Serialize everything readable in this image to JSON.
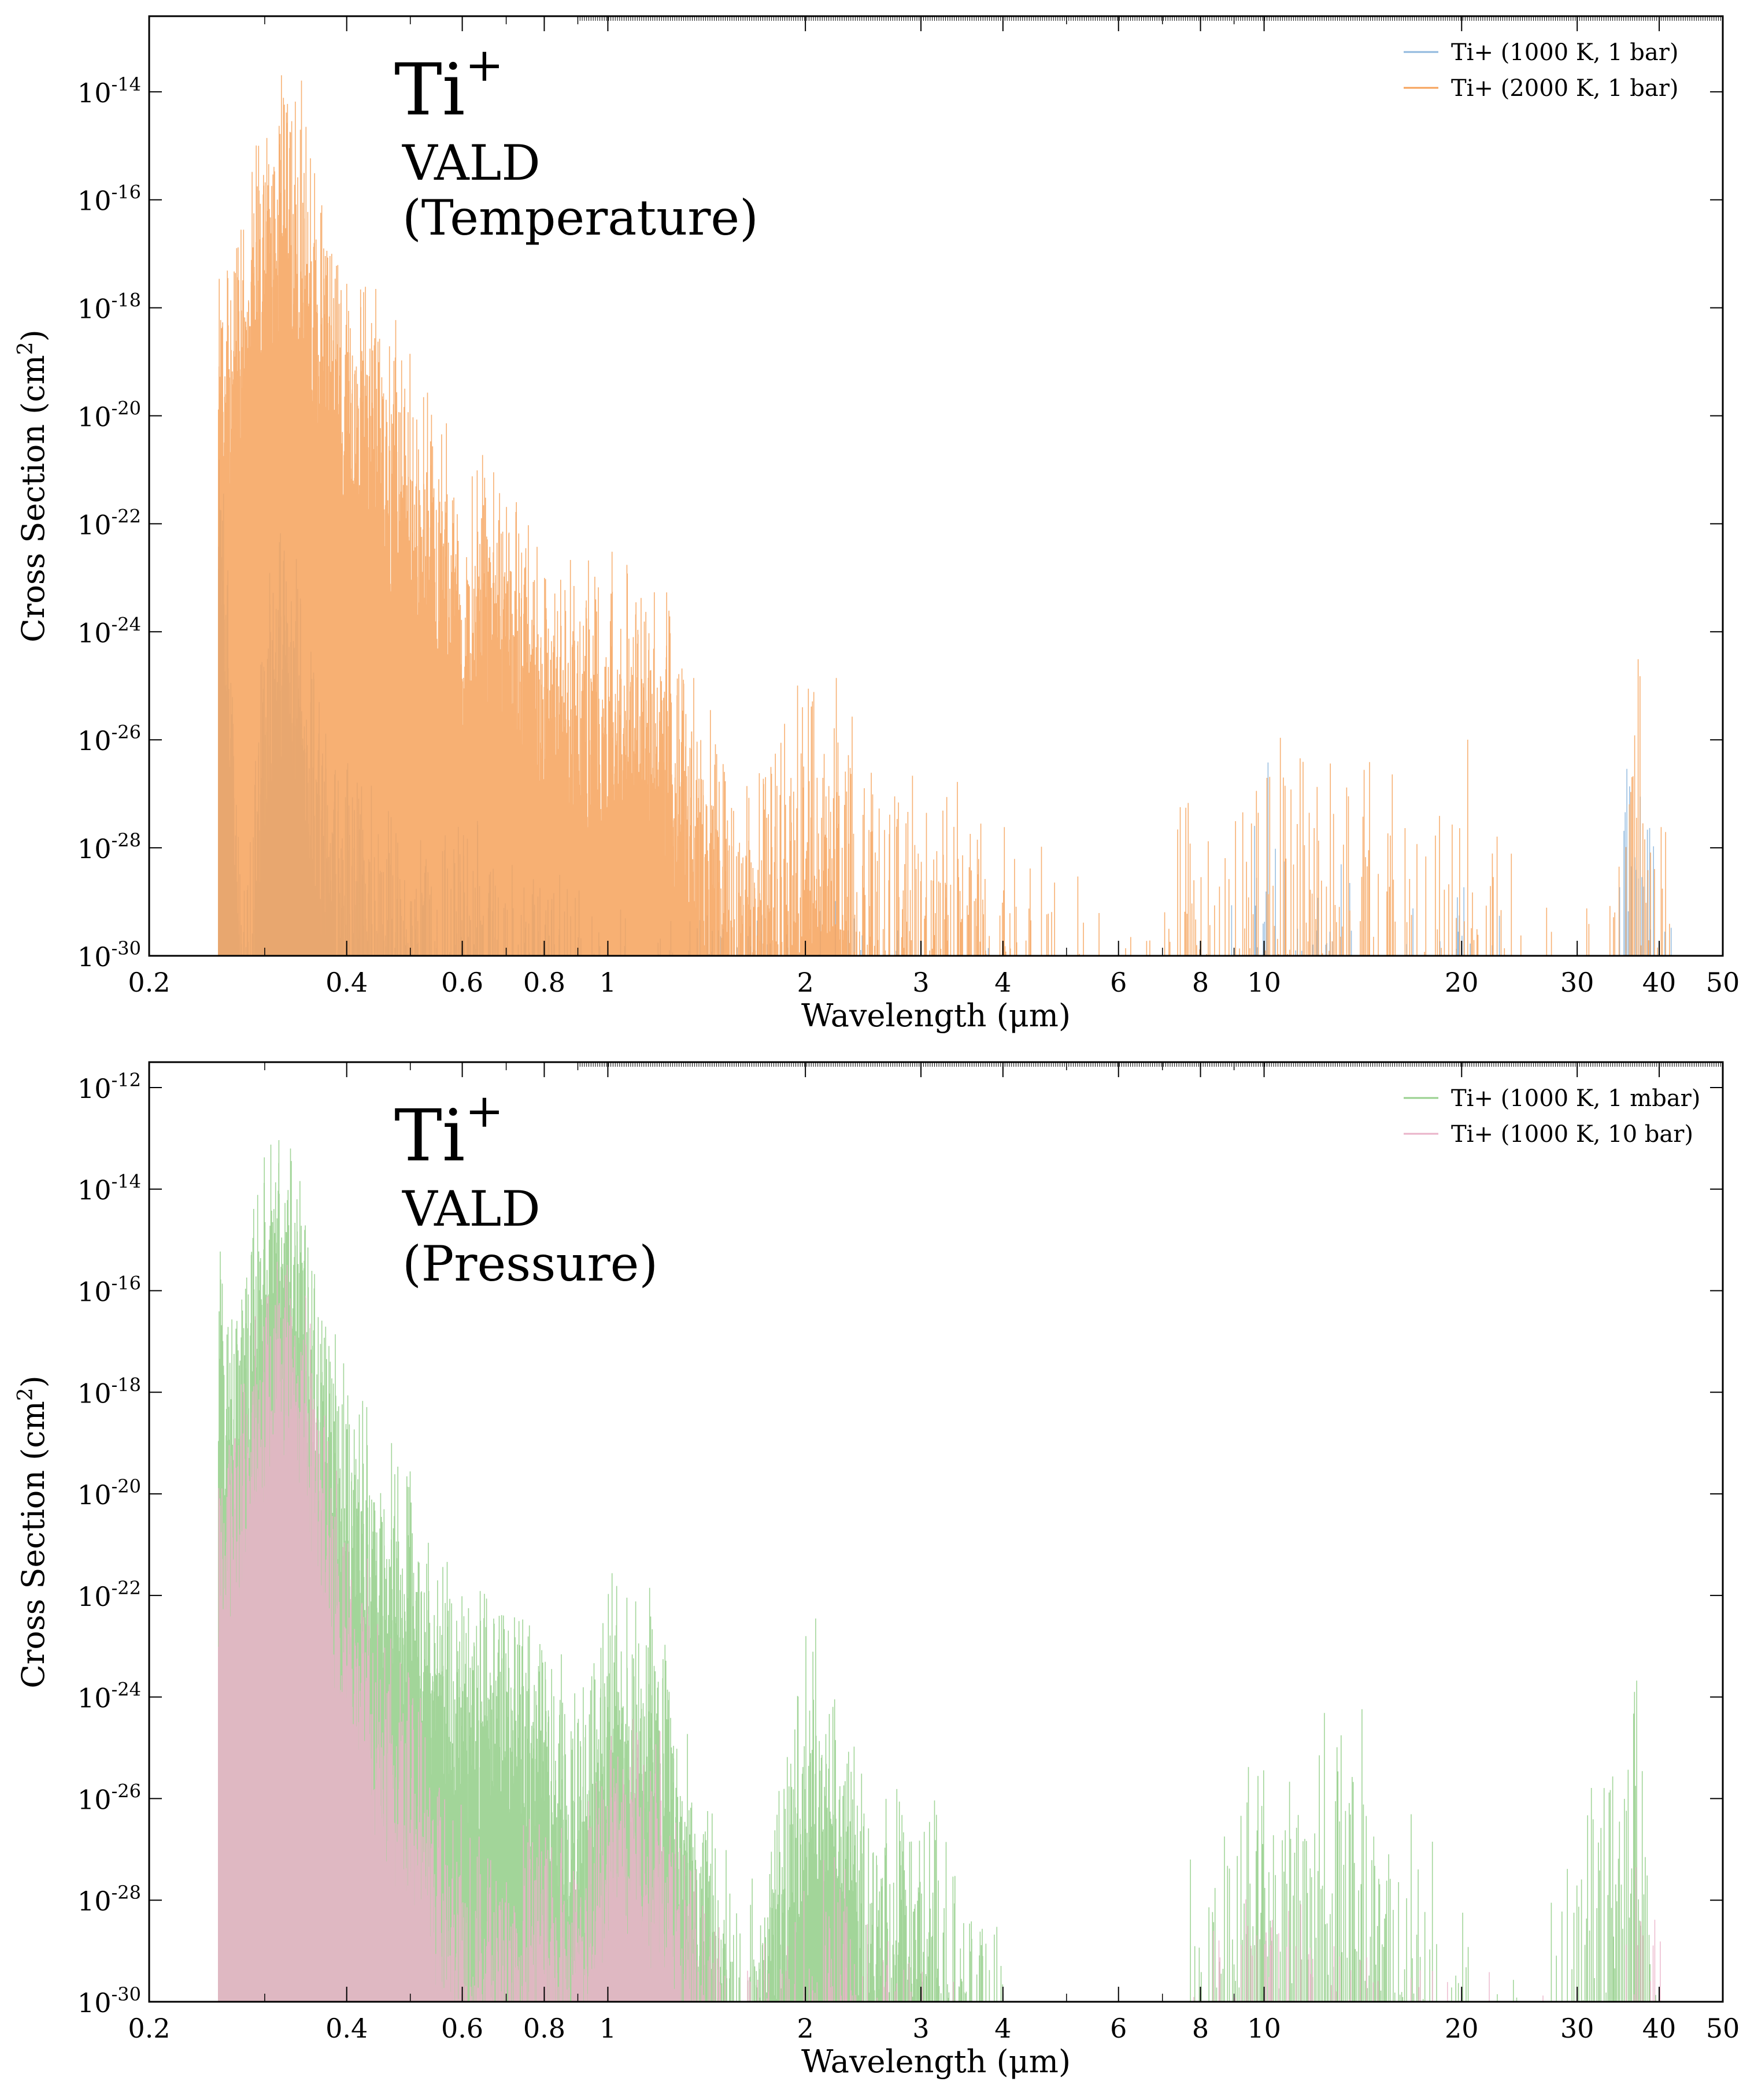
{
  "chart_data": [
    {
      "type": "line",
      "annotation": {
        "species": "Ti",
        "charge": "+",
        "database": "VALD",
        "variant": "(Temperature)"
      },
      "xlabel": "Wavelength (μm)",
      "ylabel": "Cross Section (cm²)",
      "ylabel_base": "Cross Section (cm",
      "ylabel_sup": "2",
      "ylabel_close": ")",
      "x_scale": "log",
      "y_scale": "log",
      "xlim": [
        0.2,
        50
      ],
      "ylim_exponent": [
        -30,
        -12.6
      ],
      "x_ticks": [
        {
          "value": 0.2,
          "label": "0.2"
        },
        {
          "value": 0.4,
          "label": "0.4"
        },
        {
          "value": 0.6,
          "label": "0.6"
        },
        {
          "value": 0.8,
          "label": "0.8"
        },
        {
          "value": 1,
          "label": "1"
        },
        {
          "value": 2,
          "label": "2"
        },
        {
          "value": 3,
          "label": "3"
        },
        {
          "value": 4,
          "label": "4"
        },
        {
          "value": 6,
          "label": "6"
        },
        {
          "value": 8,
          "label": "8"
        },
        {
          "value": 10,
          "label": "10"
        },
        {
          "value": 20,
          "label": "20"
        },
        {
          "value": 30,
          "label": "30"
        },
        {
          "value": 40,
          "label": "40"
        },
        {
          "value": 50,
          "label": "50"
        }
      ],
      "y_ticks": [
        {
          "exp": -30,
          "base": "10",
          "sup": "-30"
        },
        {
          "exp": -28,
          "base": "10",
          "sup": "-28"
        },
        {
          "exp": -26,
          "base": "10",
          "sup": "-26"
        },
        {
          "exp": -24,
          "base": "10",
          "sup": "-24"
        },
        {
          "exp": -22,
          "base": "10",
          "sup": "-22"
        },
        {
          "exp": -20,
          "base": "10",
          "sup": "-20"
        },
        {
          "exp": -18,
          "base": "10",
          "sup": "-18"
        },
        {
          "exp": -16,
          "base": "10",
          "sup": "-16"
        },
        {
          "exp": -14,
          "base": "10",
          "sup": "-14"
        }
      ],
      "legend_position": "top-right",
      "series": [
        {
          "name": "Ti+ (1000 K, 1 bar)",
          "color": "#8fb8de",
          "envelope": [
            [
              0.255,
              -18
            ],
            [
              0.26,
              -20
            ],
            [
              0.27,
              -25
            ],
            [
              0.28,
              -28
            ],
            [
              0.3,
              -23
            ],
            [
              0.32,
              -21
            ],
            [
              0.34,
              -22
            ],
            [
              0.36,
              -25
            ],
            [
              0.4,
              -26
            ],
            [
              0.45,
              -27
            ],
            [
              0.5,
              -27
            ],
            [
              0.55,
              -28
            ],
            [
              0.6,
              -27
            ],
            [
              0.7,
              -28
            ],
            [
              0.8,
              -28
            ],
            [
              1.0,
              -29
            ],
            [
              1.2,
              -29
            ],
            [
              1.5,
              -29
            ],
            [
              2.0,
              -29
            ],
            [
              2.5,
              -28.5
            ],
            [
              3.0,
              -29
            ],
            [
              3.5,
              -29.5
            ],
            [
              4.0,
              -29.7
            ],
            [
              7.7,
              -28.5
            ],
            [
              8.0,
              -29
            ],
            [
              9.0,
              -28.5
            ],
            [
              10.0,
              -25.2
            ],
            [
              11.0,
              -28
            ],
            [
              12.0,
              -27.5
            ],
            [
              14.0,
              -28
            ],
            [
              16.0,
              -28.5
            ],
            [
              18.0,
              -29
            ],
            [
              21.0,
              -27.5
            ],
            [
              25.0,
              -29.5
            ],
            [
              33.0,
              -29.5
            ],
            [
              36.9,
              -25.2
            ],
            [
              42.0,
              -29.5
            ]
          ]
        },
        {
          "name": "Ti+ (2000 K, 1 bar)",
          "color": "#f6a25a",
          "envelope": [
            [
              0.255,
              -15
            ],
            [
              0.26,
              -16.5
            ],
            [
              0.28,
              -15.5
            ],
            [
              0.3,
              -13.5
            ],
            [
              0.32,
              -13.2
            ],
            [
              0.34,
              -13.5
            ],
            [
              0.36,
              -15
            ],
            [
              0.4,
              -16.5
            ],
            [
              0.45,
              -17.5
            ],
            [
              0.5,
              -18.5
            ],
            [
              0.55,
              -19.5
            ],
            [
              0.6,
              -20.5
            ],
            [
              0.7,
              -20.5
            ],
            [
              0.8,
              -22
            ],
            [
              0.9,
              -22.5
            ],
            [
              1.0,
              -22.5
            ],
            [
              1.1,
              -22.3
            ],
            [
              1.2,
              -22.5
            ],
            [
              1.4,
              -25
            ],
            [
              1.6,
              -26.5
            ],
            [
              2.0,
              -24.5
            ],
            [
              2.2,
              -24
            ],
            [
              2.5,
              -26
            ],
            [
              3.0,
              -26.5
            ],
            [
              3.5,
              -26
            ],
            [
              4.0,
              -27
            ],
            [
              6.5,
              -29
            ],
            [
              7.7,
              -25
            ],
            [
              8.0,
              -26
            ],
            [
              9.0,
              -26
            ],
            [
              10.0,
              -25.2
            ],
            [
              11.0,
              -25.5
            ],
            [
              12.0,
              -25.5
            ],
            [
              14.0,
              -26
            ],
            [
              16.0,
              -26.5
            ],
            [
              18.0,
              -26.5
            ],
            [
              21.0,
              -25.5
            ],
            [
              25.0,
              -28.5
            ],
            [
              33.0,
              -28
            ],
            [
              36.9,
              -23.9
            ],
            [
              42.0,
              -28
            ]
          ]
        }
      ]
    },
    {
      "type": "line",
      "annotation": {
        "species": "Ti",
        "charge": "+",
        "database": "VALD",
        "variant": "(Pressure)"
      },
      "xlabel": "Wavelength (μm)",
      "ylabel": "Cross Section (cm²)",
      "ylabel_base": "Cross Section (cm",
      "ylabel_sup": "2",
      "ylabel_close": ")",
      "x_scale": "log",
      "y_scale": "log",
      "xlim": [
        0.2,
        50
      ],
      "ylim_exponent": [
        -30,
        -11.5
      ],
      "x_ticks": [
        {
          "value": 0.2,
          "label": "0.2"
        },
        {
          "value": 0.4,
          "label": "0.4"
        },
        {
          "value": 0.6,
          "label": "0.6"
        },
        {
          "value": 0.8,
          "label": "0.8"
        },
        {
          "value": 1,
          "label": "1"
        },
        {
          "value": 2,
          "label": "2"
        },
        {
          "value": 3,
          "label": "3"
        },
        {
          "value": 4,
          "label": "4"
        },
        {
          "value": 6,
          "label": "6"
        },
        {
          "value": 8,
          "label": "8"
        },
        {
          "value": 10,
          "label": "10"
        },
        {
          "value": 20,
          "label": "20"
        },
        {
          "value": 30,
          "label": "30"
        },
        {
          "value": 40,
          "label": "40"
        },
        {
          "value": 50,
          "label": "50"
        }
      ],
      "y_ticks": [
        {
          "exp": -30,
          "base": "10",
          "sup": "-30"
        },
        {
          "exp": -28,
          "base": "10",
          "sup": "-28"
        },
        {
          "exp": -26,
          "base": "10",
          "sup": "-26"
        },
        {
          "exp": -24,
          "base": "10",
          "sup": "-24"
        },
        {
          "exp": -22,
          "base": "10",
          "sup": "-22"
        },
        {
          "exp": -20,
          "base": "10",
          "sup": "-20"
        },
        {
          "exp": -18,
          "base": "10",
          "sup": "-18"
        },
        {
          "exp": -16,
          "base": "10",
          "sup": "-16"
        },
        {
          "exp": -14,
          "base": "10",
          "sup": "-14"
        },
        {
          "exp": -12,
          "base": "10",
          "sup": "-12"
        }
      ],
      "legend_position": "top-right",
      "series": [
        {
          "name": "Ti+ (1000 K, 1 mbar)",
          "color": "#98d08e",
          "envelope": [
            [
              0.255,
              -14
            ],
            [
              0.26,
              -15.5
            ],
            [
              0.28,
              -15
            ],
            [
              0.3,
              -12.5
            ],
            [
              0.32,
              -12.3
            ],
            [
              0.34,
              -13
            ],
            [
              0.36,
              -15
            ],
            [
              0.4,
              -17.5
            ],
            [
              0.45,
              -18.5
            ],
            [
              0.5,
              -19.5
            ],
            [
              0.55,
              -20.5
            ],
            [
              0.6,
              -21.5
            ],
            [
              0.7,
              -22
            ],
            [
              0.8,
              -22
            ],
            [
              0.9,
              -24
            ],
            [
              1.0,
              -21.5
            ],
            [
              1.1,
              -21.5
            ],
            [
              1.2,
              -22
            ],
            [
              1.3,
              -24
            ],
            [
              1.6,
              -28
            ],
            [
              2.0,
              -22.5
            ],
            [
              2.2,
              -22
            ],
            [
              2.5,
              -25.5
            ],
            [
              3.0,
              -25
            ],
            [
              3.5,
              -27
            ],
            [
              4.0,
              -28
            ],
            [
              7.7,
              -25
            ],
            [
              8.0,
              -27
            ],
            [
              9.0,
              -25
            ],
            [
              10.0,
              -23.5
            ],
            [
              11.0,
              -25
            ],
            [
              12.0,
              -24
            ],
            [
              14.0,
              -24
            ],
            [
              16.0,
              -25.5
            ],
            [
              18.0,
              -26.5
            ],
            [
              21.0,
              -27.5
            ],
            [
              25.0,
              -29
            ],
            [
              36.9,
              -22.7
            ],
            [
              42.0,
              -30
            ],
            [
              45.0,
              -29.8
            ]
          ]
        },
        {
          "name": "Ti+ (1000 K, 10 bar)",
          "color": "#eab3c9",
          "envelope": [
            [
              0.255,
              -18
            ],
            [
              0.26,
              -18.5
            ],
            [
              0.28,
              -17
            ],
            [
              0.3,
              -15.5
            ],
            [
              0.32,
              -14.5
            ],
            [
              0.34,
              -15
            ],
            [
              0.36,
              -17
            ],
            [
              0.4,
              -20
            ],
            [
              0.45,
              -22
            ],
            [
              0.5,
              -23
            ],
            [
              0.55,
              -24.5
            ],
            [
              0.6,
              -26
            ],
            [
              0.7,
              -27
            ],
            [
              0.8,
              -25.5
            ],
            [
              0.9,
              -27
            ],
            [
              1.0,
              -24
            ],
            [
              1.1,
              -24
            ],
            [
              1.2,
              -24.5
            ],
            [
              1.3,
              -26
            ],
            [
              1.6,
              -29.5
            ],
            [
              2.0,
              -27
            ],
            [
              2.2,
              -26.5
            ],
            [
              2.5,
              -28
            ],
            [
              3.0,
              -29
            ],
            [
              3.5,
              -29.5
            ],
            [
              7.7,
              -28.5
            ],
            [
              9.0,
              -28
            ],
            [
              10.0,
              -26.4
            ],
            [
              11.0,
              -27.5
            ],
            [
              12.0,
              -26.8
            ],
            [
              14.0,
              -28
            ],
            [
              16.0,
              -28.5
            ],
            [
              21.0,
              -29
            ],
            [
              33.0,
              -29.2
            ],
            [
              36.9,
              -25.8
            ],
            [
              42.0,
              -29.2
            ]
          ]
        }
      ]
    }
  ]
}
